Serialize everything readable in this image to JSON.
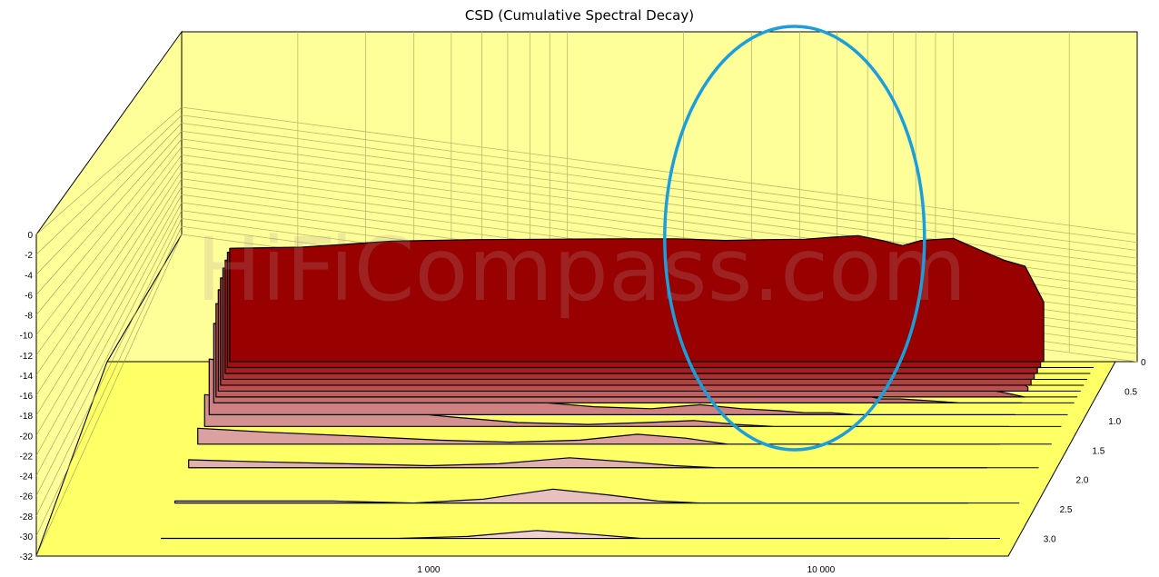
{
  "chart_data": {
    "type": "area",
    "title": "CSD (Cumulative Spectral Decay)",
    "xlabel": "",
    "ylabel": "",
    "zlabel": "",
    "x_scale": "log",
    "x_range": [
      100,
      30000
    ],
    "x_tick_labels": [
      "1 000",
      "10 000"
    ],
    "y_range": [
      -32,
      0
    ],
    "y_tick_labels": [
      "0",
      "-2",
      "-4",
      "-6",
      "-8",
      "-10",
      "-12",
      "-14",
      "-16",
      "-18",
      "-20",
      "-22",
      "-24",
      "-26",
      "-28",
      "-30",
      "-32"
    ],
    "z_range": [
      0,
      3.3
    ],
    "z_tick_labels": [
      "0",
      "0.5",
      "1.0",
      "1.5",
      "2.0",
      "2.5",
      "3.0"
    ],
    "watermark": "HiFiCompass.com",
    "highlight": {
      "shape": "ellipse",
      "color": "#1a9fdc",
      "center_freq_approx": 6000
    },
    "colors": {
      "wall": "#ffff99",
      "floor": "#ffff66",
      "front_slice": "#990000",
      "rear_slice": "#f0d0d0",
      "highlight": "#1a9fdc"
    },
    "series": [
      {
        "name": "",
        "time": 0.0,
        "freq": [
          200,
          300,
          500,
          800,
          1200,
          1800,
          2500,
          3300,
          4200,
          5200,
          6000,
          7000,
          8000,
          9000,
          10000,
          12000,
          14000,
          16000,
          18000,
          20000
        ],
        "db": [
          -3.5,
          -3.2,
          -1.7,
          -1.3,
          -1.2,
          -1.1,
          -1.1,
          -1.5,
          -1.3,
          -1.2,
          -0.7,
          -0.3,
          -1.5,
          -2.8,
          -1.5,
          -1.0,
          -4.0,
          -6.5,
          -8.0,
          -17.0
        ]
      },
      {
        "name": "",
        "time": 0.1,
        "freq": [
          200,
          300,
          500,
          800,
          1200,
          1800,
          2500,
          3300,
          4200,
          5200,
          6000,
          7000,
          8000,
          9000,
          10000,
          12000,
          14000,
          16000,
          18000,
          20000
        ],
        "db": [
          -3.0,
          -3.2,
          -4.0,
          -5.0,
          -6.5,
          -8.0,
          -9.5,
          -8.5,
          -7.0,
          -5.5,
          -5.0,
          -6.0,
          -8.0,
          -10.5,
          -8.0,
          -9.0,
          -9.5,
          -11.0,
          -14.0,
          -20.0
        ]
      },
      {
        "name": "",
        "time": 0.2,
        "freq": [
          200,
          300,
          500,
          800,
          1200,
          1800,
          2500,
          3300,
          4200,
          5200,
          6000,
          7000,
          8000,
          9000,
          10000,
          12000,
          14000,
          16000,
          18000,
          20000
        ],
        "db": [
          -3.5,
          -4.0,
          -5.0,
          -6.5,
          -8.5,
          -10.0,
          -11.5,
          -11.0,
          -10.0,
          -9.5,
          -10.0,
          -11.0,
          -12.5,
          -13.0,
          -12.0,
          -13.0,
          -13.5,
          -14.5,
          -16.0,
          -22.0
        ]
      },
      {
        "name": "",
        "time": 0.3,
        "freq": [
          200,
          300,
          500,
          800,
          1200,
          1800,
          2500,
          3300,
          4200,
          5200,
          6000,
          7000,
          8000,
          9000,
          10000,
          12000,
          14000,
          16000,
          18000,
          20000
        ],
        "db": [
          -4.0,
          -4.5,
          -6.0,
          -8.0,
          -11.0,
          -12.5,
          -14.0,
          -13.5,
          -13.0,
          -13.5,
          -14.0,
          -14.5,
          -15.5,
          -16.5,
          -15.5,
          -16.0,
          -17.0,
          -18.5,
          -19.5,
          -24.0
        ]
      },
      {
        "name": "",
        "time": 0.4,
        "freq": [
          200,
          300,
          500,
          800,
          1200,
          1800,
          2500,
          3300,
          4200,
          5200,
          6000,
          7000,
          8000,
          9000,
          10000,
          12000,
          14000,
          16000,
          18000,
          20000
        ],
        "db": [
          -5.0,
          -6.0,
          -8.5,
          -11.0,
          -14.0,
          -16.0,
          -17.5,
          -16.0,
          -16.5,
          -17.5,
          -18.5,
          -18.0,
          -19.5,
          -20.5,
          -20.0,
          -20.5,
          -21.5,
          -22.5,
          -24.0,
          -28.0
        ]
      },
      {
        "name": "",
        "time": 0.5,
        "freq": [
          200,
          300,
          500,
          800,
          1200,
          1800,
          2500,
          3300,
          4200,
          5200,
          6000,
          7000,
          8000,
          9000,
          10000,
          12000,
          14000,
          16000,
          18000,
          20000
        ],
        "db": [
          -6.5,
          -8.0,
          -10.5,
          -14.0,
          -17.5,
          -19.5,
          -21.0,
          -19.0,
          -20.0,
          -21.0,
          -22.0,
          -21.5,
          -23.0,
          -24.0,
          -23.5,
          -24.5,
          -25.0,
          -26.5,
          -28.0,
          -31.0
        ]
      },
      {
        "name": "",
        "time": 0.6,
        "freq": [
          200,
          300,
          500,
          800,
          1200,
          1800,
          2500,
          3300,
          4200,
          5200,
          6000,
          7000,
          8000,
          9000,
          10000,
          12000,
          14000,
          16000,
          18000,
          20000
        ],
        "db": [
          -8.5,
          -10.0,
          -13.5,
          -18.0,
          -21.0,
          -23.0,
          -24.5,
          -22.5,
          -24.0,
          -25.0,
          -26.0,
          -25.5,
          -27.0,
          -28.0,
          -27.5,
          -28.5,
          -29.0,
          -30.0,
          -31.0,
          -32.0
        ]
      },
      {
        "name": "",
        "time": 0.7,
        "freq": [
          200,
          300,
          500,
          800,
          1200,
          1800,
          2500,
          3300,
          4200,
          5200,
          6000,
          7000,
          8000,
          9000,
          10000,
          12000,
          14000,
          16000,
          18000,
          20000
        ],
        "db": [
          -12.0,
          -14.0,
          -17.0,
          -21.5,
          -24.5,
          -26.0,
          -27.5,
          -26.0,
          -27.5,
          -28.5,
          -29.0,
          -29.0,
          -30.0,
          -31.0,
          -31.0,
          -31.5,
          -32.0,
          -32.0,
          -32.0,
          -32.0
        ]
      },
      {
        "name": "",
        "time": 0.9,
        "freq": [
          200,
          300,
          500,
          800,
          1200,
          1800,
          2500,
          3300,
          4200,
          5200,
          6000,
          7000,
          8000,
          9000,
          10000,
          12000,
          14000,
          16000,
          18000,
          20000
        ],
        "db": [
          -18.0,
          -20.0,
          -23.0,
          -26.0,
          -28.5,
          -30.0,
          -30.5,
          -29.5,
          -30.5,
          -31.0,
          -31.5,
          -31.5,
          -32.0,
          -32.0,
          -32.0,
          -32.0,
          -32.0,
          -32.0,
          -32.0,
          -32.0
        ]
      },
      {
        "name": "",
        "time": 1.1,
        "freq": [
          200,
          300,
          500,
          800,
          1200,
          1800,
          2500,
          3300,
          4200,
          5200,
          6000,
          7000,
          8000,
          9000,
          10000,
          12000,
          14000,
          16000,
          18000,
          20000
        ],
        "db": [
          -24.0,
          -25.5,
          -27.5,
          -29.5,
          -31.0,
          -31.5,
          -31.0,
          -30.5,
          -31.5,
          -32.0,
          -32.0,
          -32.0,
          -32.0,
          -32.0,
          -32.0,
          -32.0,
          -32.0,
          -32.0,
          -32.0,
          -32.0
        ]
      },
      {
        "name": "",
        "time": 1.4,
        "freq": [
          200,
          300,
          500,
          800,
          1200,
          1800,
          2500,
          3300,
          4200,
          5200,
          6000,
          7000,
          8000,
          9000,
          10000,
          12000,
          14000,
          16000,
          18000,
          20000
        ],
        "db": [
          -28.0,
          -29.0,
          -30.0,
          -31.0,
          -31.5,
          -31.0,
          -29.5,
          -30.5,
          -32.0,
          -32.0,
          -32.0,
          -32.0,
          -32.0,
          -32.0,
          -32.0,
          -32.0,
          -32.0,
          -32.0,
          -32.0,
          -32.0
        ]
      },
      {
        "name": "",
        "time": 1.8,
        "freq": [
          200,
          300,
          500,
          800,
          1200,
          1800,
          2500,
          3300,
          4200,
          5200,
          6000,
          7000,
          8000,
          9000,
          10000,
          12000,
          14000,
          16000,
          18000,
          20000
        ],
        "db": [
          -30.0,
          -30.5,
          -31.0,
          -31.5,
          -31.0,
          -29.5,
          -30.5,
          -31.5,
          -32.0,
          -32.0,
          -32.0,
          -32.0,
          -32.0,
          -32.0,
          -32.0,
          -32.0,
          -32.0,
          -32.0,
          -32.0,
          -32.0
        ]
      },
      {
        "name": "",
        "time": 2.4,
        "freq": [
          200,
          300,
          500,
          800,
          1200,
          1800,
          2500,
          3300,
          4200,
          5200,
          6000,
          7000,
          8000,
          9000,
          10000,
          12000,
          14000,
          16000,
          18000,
          20000
        ],
        "db": [
          -31.5,
          -31.5,
          -31.5,
          -32.0,
          -31.0,
          -28.5,
          -30.0,
          -31.5,
          -32.0,
          -32.0,
          -32.0,
          -32.0,
          -32.0,
          -32.0,
          -32.0,
          -32.0,
          -32.0,
          -32.0,
          -32.0,
          -32.0
        ]
      },
      {
        "name": "",
        "time": 3.0,
        "freq": [
          200,
          300,
          500,
          800,
          1200,
          1800,
          2500,
          3300,
          4200,
          5200,
          6000,
          7000,
          8000,
          9000,
          10000,
          12000,
          14000,
          16000,
          18000,
          20000
        ],
        "db": [
          -32.0,
          -32.0,
          -32.0,
          -32.0,
          -31.5,
          -30.0,
          -31.0,
          -32.0,
          -32.0,
          -32.0,
          -32.0,
          -32.0,
          -32.0,
          -32.0,
          -32.0,
          -32.0,
          -32.0,
          -32.0,
          -32.0,
          -32.0
        ]
      }
    ]
  }
}
